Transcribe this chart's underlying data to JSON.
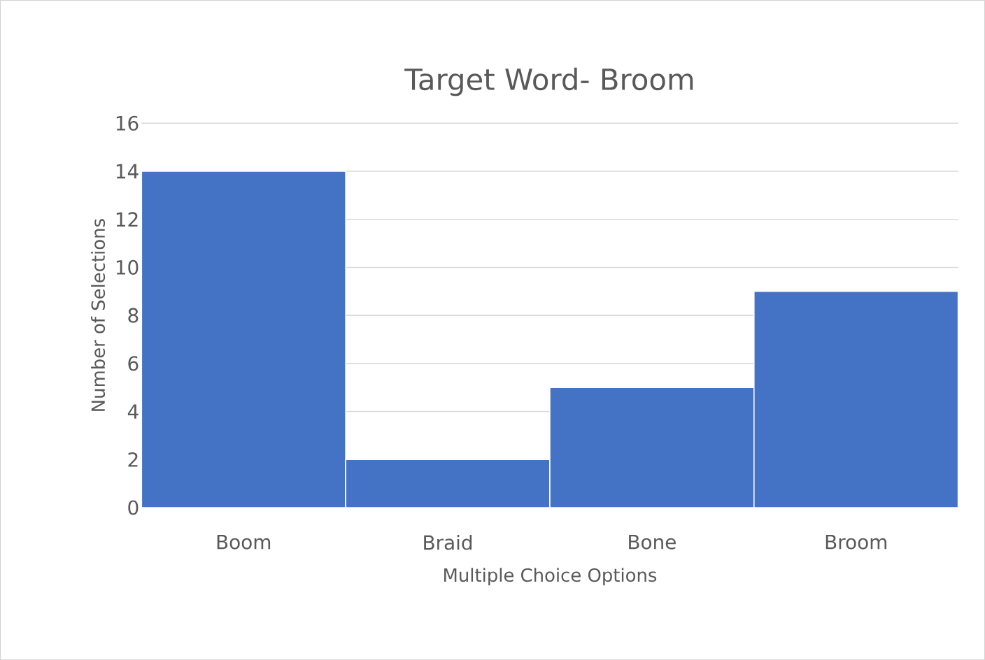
{
  "chart_data": {
    "type": "bar",
    "title": "Target Word- Broom",
    "xlabel": "Multiple Choice Options",
    "ylabel": "Number of Selections",
    "categories": [
      "Boom",
      "Braid",
      "Bone",
      "Broom"
    ],
    "values": [
      14,
      2,
      5,
      9
    ],
    "color": "#4472c4",
    "ylim": [
      0,
      16
    ],
    "yticks": [
      0,
      2,
      4,
      6,
      8,
      10,
      12,
      14,
      16
    ],
    "grid": true
  }
}
